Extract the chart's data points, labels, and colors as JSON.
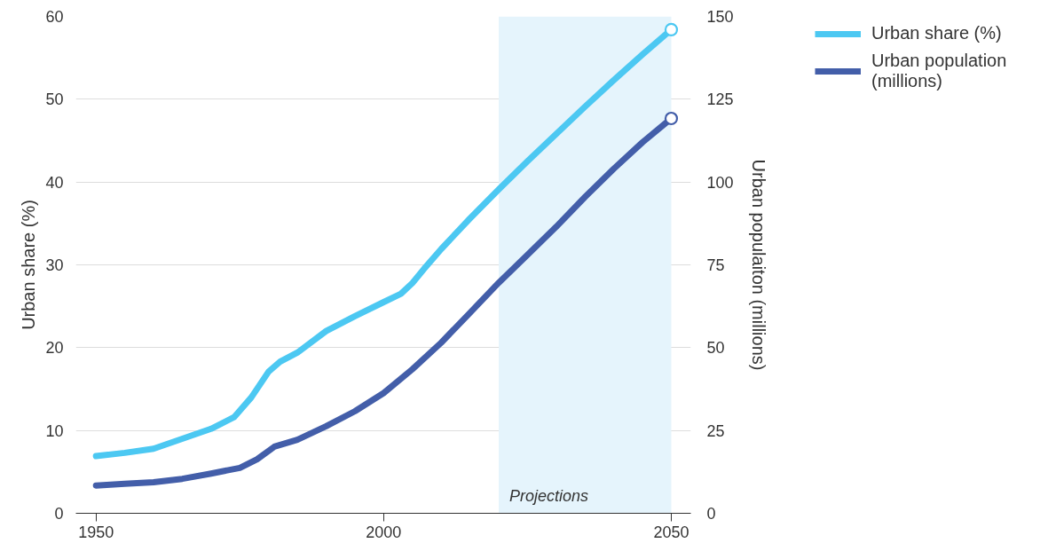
{
  "chart_data": {
    "type": "line",
    "ylabel": "Urban share (%)",
    "y2label": "Urban populaiton (millions)",
    "xlim": [
      1946.5,
      2053.4
    ],
    "xticks": [
      1950,
      2000,
      2050
    ],
    "ylim": [
      0,
      60
    ],
    "yticks": [
      0,
      10,
      20,
      30,
      40,
      50,
      60
    ],
    "y2lim": [
      0,
      150
    ],
    "y2ticks": [
      0,
      25,
      50,
      75,
      100,
      125,
      150
    ],
    "grid": "y",
    "legend": "top right",
    "bands": [
      {
        "axis": "x",
        "from": 2020,
        "to": 2050,
        "label": "Projections",
        "color": "#e5f4fc"
      }
    ],
    "series": [
      {
        "name": "Urban share (%)",
        "color": "#4cc8f2",
        "x": [
          1950,
          1955,
          1960,
          1965,
          1970,
          1974,
          1977,
          1980,
          1982,
          1985,
          1990,
          1995,
          2000,
          2003,
          2005,
          2007,
          2010,
          2015,
          2020,
          2025,
          2030,
          2035,
          2040,
          2045,
          2050
        ],
        "values": [
          6.9,
          7.3,
          7.8,
          9.0,
          10.2,
          11.6,
          14.0,
          17.1,
          18.3,
          19.4,
          22.0,
          23.8,
          25.5,
          26.5,
          27.8,
          29.5,
          31.9,
          35.6,
          39.1,
          42.5,
          45.8,
          49.1,
          52.3,
          55.4,
          58.4
        ]
      },
      {
        "name": "Urban population (millions)",
        "color": "#435ea9",
        "axis": "y2",
        "x": [
          1950,
          1955,
          1960,
          1965,
          1970,
          1975,
          1978,
          1981,
          1985,
          1990,
          1995,
          2000,
          2005,
          2010,
          2015,
          2020,
          2025,
          2030,
          2035,
          2040,
          2045,
          2050
        ],
        "values": [
          8.4,
          8.9,
          9.4,
          10.4,
          12.0,
          13.7,
          16.3,
          20.1,
          22.2,
          26.3,
          30.8,
          36.3,
          43.5,
          51.5,
          60.5,
          69.6,
          78.0,
          86.5,
          95.5,
          104.0,
          112.0,
          119.2
        ]
      },
      {
        "type": "scatter",
        "marker": "circle",
        "color": "#4cc8f2",
        "x": [
          2050
        ],
        "values": [
          58.4
        ]
      },
      {
        "type": "scatter",
        "marker": "circle",
        "color": "#435ea9",
        "axis": "y2",
        "x": [
          2050
        ],
        "values": [
          119.2
        ]
      }
    ]
  }
}
